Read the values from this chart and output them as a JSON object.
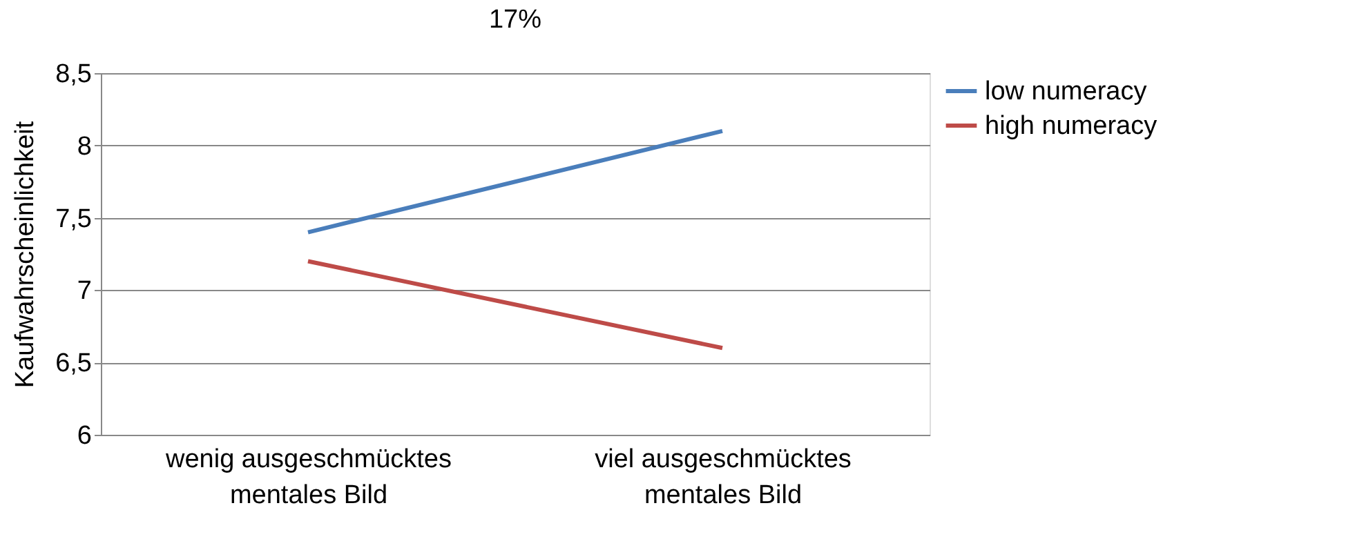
{
  "chart_data": {
    "type": "line",
    "title": "17%",
    "ylabel": "Kaufwahrscheinlichkeit",
    "categories": [
      "wenig ausgeschmücktes\nmentales Bild",
      "viel ausgeschmücktes\nmentales Bild"
    ],
    "series": [
      {
        "name": "low numeracy",
        "color": "#4a7ebb",
        "values": [
          7.4,
          8.1
        ]
      },
      {
        "name": "high numeracy",
        "color": "#be4b48",
        "values": [
          7.2,
          6.6
        ]
      }
    ],
    "ylim": [
      6,
      8.5
    ],
    "yticks": [
      6,
      {
        "value": 6.5,
        "label": "6,5"
      },
      7,
      {
        "value": 7.5,
        "label": "7,5"
      },
      8,
      {
        "value": 8.5,
        "label": "8,5"
      }
    ],
    "grid": "y",
    "legend": "right",
    "marker": "none",
    "line_style": "solid"
  }
}
